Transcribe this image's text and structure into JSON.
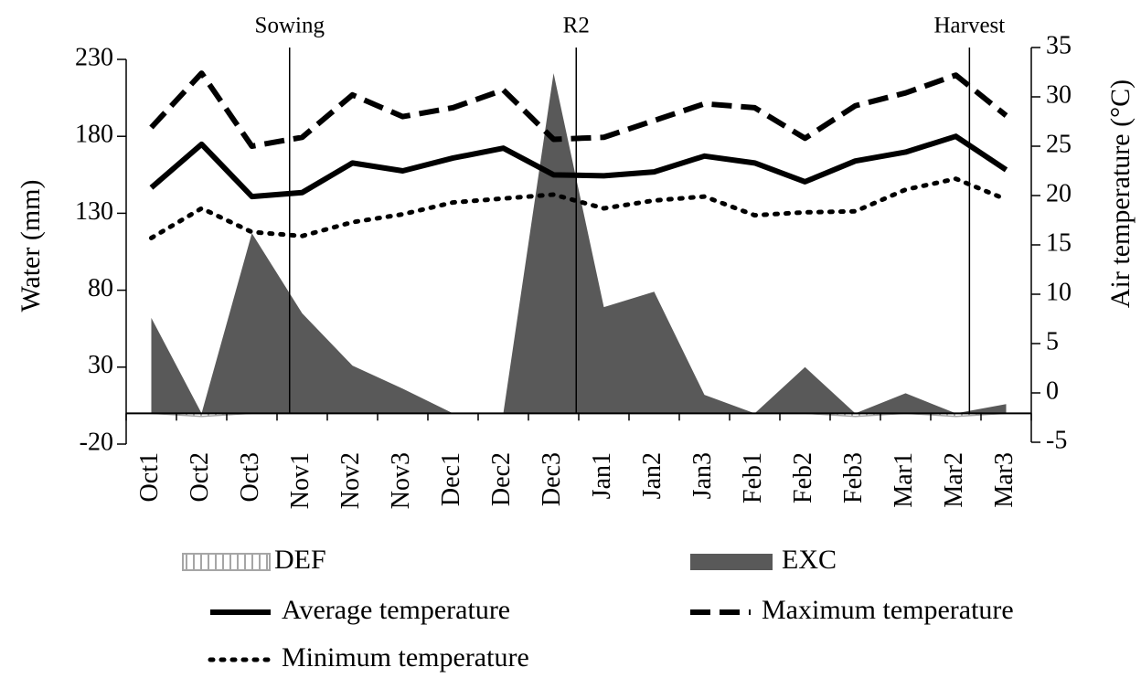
{
  "chart_data": {
    "type": "combo",
    "y_label": "Water (mm)",
    "y2_label": "Air temperature (°C)",
    "categories": [
      "Oct1",
      "Oct2",
      "Oct3",
      "Nov1",
      "Nov2",
      "Nov3",
      "Dec1",
      "Dec2",
      "Dec3",
      "Jan1",
      "Jan2",
      "Jan3",
      "Feb1",
      "Feb2",
      "Feb3",
      "Mar1",
      "Mar2",
      "Mar3"
    ],
    "annotations": [
      "Sowing",
      "R2",
      "Harvest"
    ],
    "ylim": [
      -20,
      230
    ],
    "yticks": [
      -20,
      30,
      80,
      130,
      180,
      230
    ],
    "y2lim": [
      -5,
      35
    ],
    "y2ticks": [
      -5,
      0,
      5,
      10,
      15,
      20,
      25,
      30,
      35
    ],
    "series": [
      {
        "name": "DEF",
        "kind": "area",
        "color": "#a6a6a6",
        "axis": "y",
        "values": [
          0,
          -2,
          0,
          0,
          0,
          0,
          0,
          0,
          0,
          0,
          0,
          0,
          0,
          0,
          -2,
          0,
          -2,
          0
        ]
      },
      {
        "name": "EXC",
        "kind": "area",
        "color": "#595959",
        "axis": "y",
        "values": [
          62,
          0,
          117,
          65,
          31,
          16,
          0,
          0,
          221,
          69,
          79,
          12,
          0,
          30,
          0,
          13,
          0,
          6
        ]
      },
      {
        "name": "Average temperature",
        "kind": "line",
        "dash": "solid",
        "color": "#000000",
        "axis": "y2",
        "values": [
          20.8,
          25.2,
          19.9,
          20.3,
          23.3,
          22.5,
          23.8,
          24.8,
          22.1,
          22.0,
          22.4,
          24.0,
          23.3,
          21.4,
          23.5,
          24.4,
          26.0,
          22.6
        ]
      },
      {
        "name": "Maximum temperature",
        "kind": "line",
        "dash": "dashed",
        "color": "#000000",
        "axis": "y2",
        "values": [
          26.9,
          32.4,
          25.0,
          25.9,
          30.2,
          28.0,
          28.9,
          30.7,
          25.7,
          25.9,
          27.6,
          29.3,
          28.9,
          25.8,
          29.1,
          30.4,
          32.2,
          28.1
        ]
      },
      {
        "name": "Minimum temperature",
        "kind": "line",
        "dash": "dotted",
        "color": "#000000",
        "axis": "y2",
        "values": [
          15.7,
          18.7,
          16.3,
          15.9,
          17.3,
          18.1,
          19.3,
          19.7,
          20.1,
          18.7,
          19.5,
          19.9,
          18.0,
          18.3,
          18.4,
          20.6,
          21.7,
          19.6
        ]
      }
    ]
  }
}
